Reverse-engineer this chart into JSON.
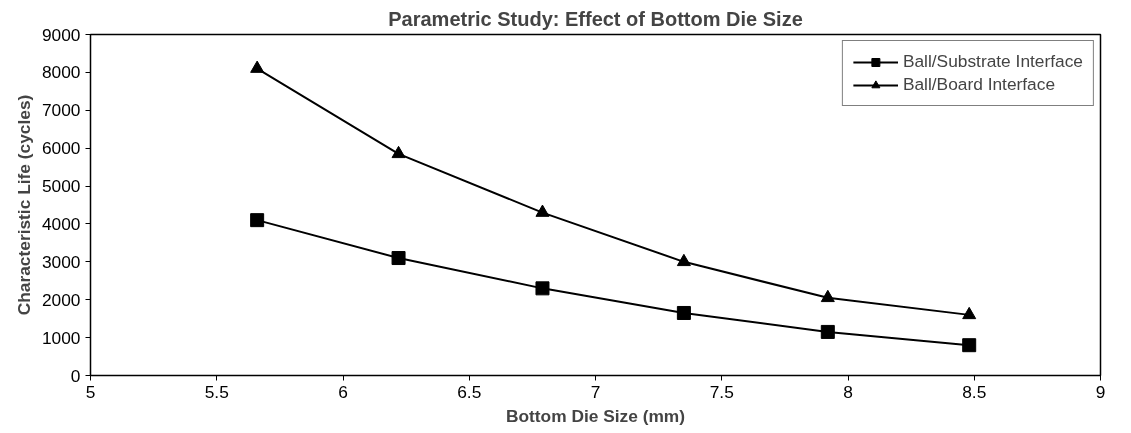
{
  "chart_data": {
    "type": "line",
    "title": "Parametric Study: Effect of Bottom Die Size",
    "xlabel": "Bottom Die Size (mm)",
    "ylabel": "Characteristic Life (cycles)",
    "x": [
      5.66,
      6.22,
      6.79,
      7.35,
      7.92,
      8.48
    ],
    "series": [
      {
        "name": "Ball/Substrate Interface",
        "color": "#000000",
        "marker": "square",
        "values": [
          4100,
          3100,
          2300,
          1650,
          1150,
          800
        ]
      },
      {
        "name": "Ball/Board Interface",
        "color": "#000000",
        "marker": "triangle",
        "values": [
          8100,
          5850,
          4300,
          3000,
          2050,
          1600
        ]
      }
    ],
    "xlim": [
      5,
      9
    ],
    "xticks": [
      5,
      5.5,
      6,
      6.5,
      7,
      7.5,
      8,
      8.5,
      9
    ],
    "ylim": [
      0,
      9000
    ],
    "yticks": [
      0,
      1000,
      2000,
      3000,
      4000,
      5000,
      6000,
      7000,
      8000,
      9000
    ],
    "grid": false,
    "legend": "top right",
    "line_style": "solid"
  }
}
